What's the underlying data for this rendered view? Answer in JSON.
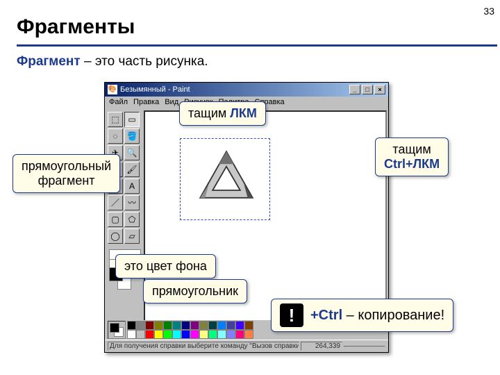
{
  "slide_number": "33",
  "title": "Фрагменты",
  "definition_term": "Фрагмент",
  "definition_rest": " – это часть рисунка.",
  "paint": {
    "window_title": "Безымянный - Paint",
    "menu": [
      "Файл",
      "Правка",
      "Вид",
      "Рисунок",
      "Палитра",
      "Справка"
    ],
    "status_left": "Для получения справки выберите команду \"Вызов справки\" из",
    "status_coords": "264,339",
    "palette_row1": [
      "#000000",
      "#808080",
      "#800000",
      "#808000",
      "#008000",
      "#008080",
      "#000080",
      "#800080",
      "#808040",
      "#004040",
      "#0080ff",
      "#4040a0",
      "#4000ff",
      "#804000"
    ],
    "palette_row2": [
      "#ffffff",
      "#c0c0c0",
      "#ff0000",
      "#ffff00",
      "#00ff00",
      "#00ffff",
      "#0000ff",
      "#ff00ff",
      "#ffff80",
      "#00ff80",
      "#80ffff",
      "#8080ff",
      "#ff0080",
      "#ff8040"
    ],
    "tools": [
      "⬚",
      "▭",
      "◌",
      "🔍",
      "✎",
      "🖌",
      "✈",
      "🪣",
      "A",
      "／",
      "〰",
      "▢",
      "⬠",
      "◯",
      "⬭",
      "▱"
    ]
  },
  "callouts": {
    "lmb": "тащим ",
    "lmb_hl": "ЛКМ",
    "ctrl_lmb_a": "тащим",
    "ctrl_lmb_b": "Ctrl+ЛКМ",
    "rect_frag_a": "прямоугольный",
    "rect_frag_b": "фрагмент",
    "bg_color": "это цвет фона",
    "select_rect": "прямоугольник"
  },
  "note": {
    "bang": "!",
    "prefix": "+Ctrl",
    "rest": " – копирование!"
  }
}
